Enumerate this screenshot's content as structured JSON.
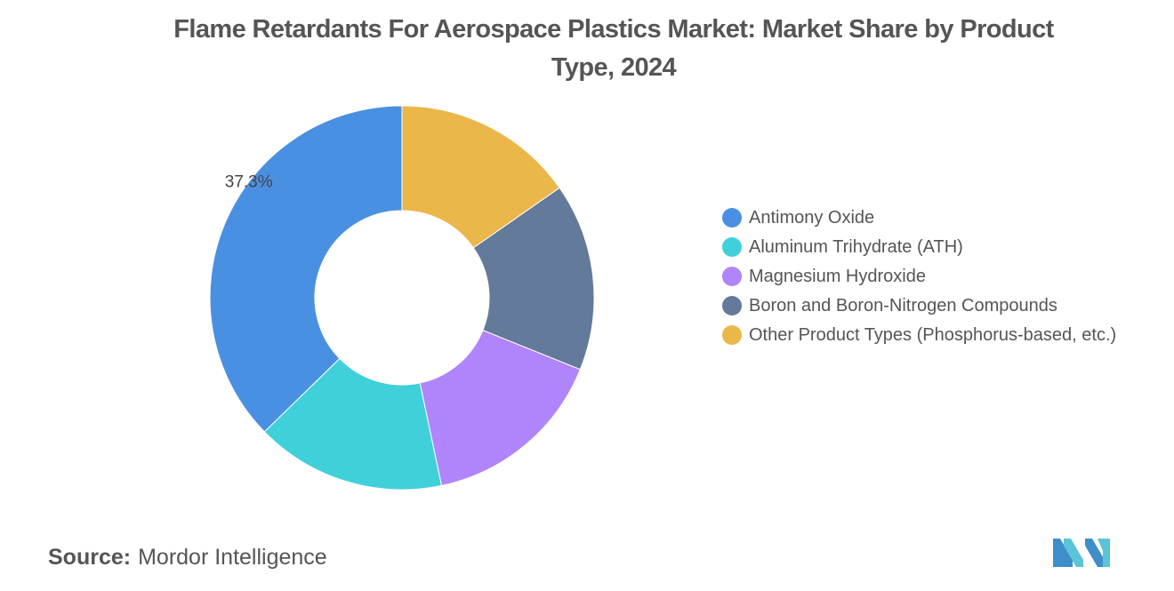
{
  "title": "Flame Retardants For Aerospace Plastics Market: Market Share by Product Type, 2024",
  "source": {
    "label": "Source:",
    "value": "Mordor Intelligence"
  },
  "chart_data": {
    "type": "pie",
    "variant": "donut",
    "title": "Flame Retardants For Aerospace Plastics Market: Market Share by Product Type, 2024",
    "legend_position": "right",
    "slices": [
      {
        "name": "Antimony Oxide",
        "value": 37.3,
        "color": "#4A90E2",
        "label": "37.3%"
      },
      {
        "name": "Aluminum Trihydrate (ATH)",
        "value": 16.0,
        "color": "#40D0DA",
        "label": ""
      },
      {
        "name": "Magnesium Hydroxide",
        "value": 15.6,
        "color": "#B084FA",
        "label": ""
      },
      {
        "name": "Boron and Boron-Nitrogen Compounds",
        "value": 15.8,
        "color": "#647A9B",
        "label": ""
      },
      {
        "name": "Other Product Types (Phosphorus-based, etc.)",
        "value": 15.3,
        "color": "#EBB74A",
        "label": ""
      }
    ]
  }
}
